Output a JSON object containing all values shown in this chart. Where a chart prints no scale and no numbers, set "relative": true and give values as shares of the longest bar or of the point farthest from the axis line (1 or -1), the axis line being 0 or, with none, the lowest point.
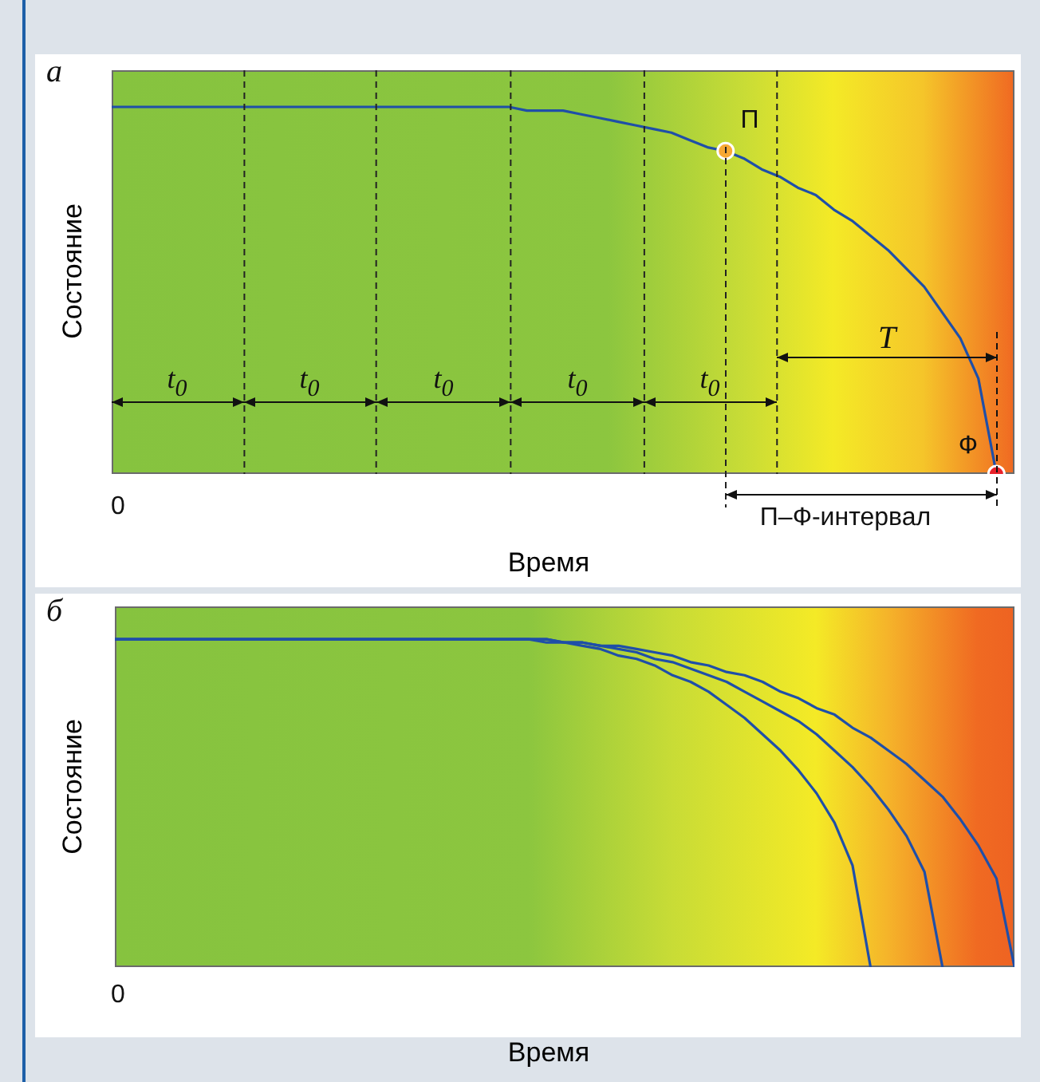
{
  "chart_data": [
    {
      "type": "line",
      "relative": true,
      "xlabel": "Время",
      "ylabel": "Состояние",
      "legend": false,
      "grid": "x",
      "categories": [
        null,
        null,
        null,
        null,
        null,
        null,
        null,
        null,
        null,
        null,
        null,
        null,
        null,
        null,
        null,
        null,
        null,
        null,
        null,
        null,
        null,
        null,
        null,
        null,
        null,
        null,
        null,
        null,
        null,
        null,
        null,
        null,
        null,
        null,
        null,
        null,
        null,
        null,
        null,
        null,
        null,
        null,
        null,
        null,
        null,
        null,
        null,
        null,
        null,
        null,
        null
      ],
      "series": [
        {
          "color": "#1f4fa8",
          "values": [
            1,
            1,
            1,
            1,
            1,
            1,
            1,
            1,
            1,
            1,
            1,
            1,
            1,
            1,
            1,
            1,
            1,
            1,
            1,
            1,
            1,
            1.0,
            1.0,
            0.99,
            0.99,
            0.99,
            0.98,
            0.97,
            0.96,
            0.95,
            0.94,
            0.93,
            0.91,
            0.89,
            0.88,
            0.86,
            0.83,
            0.81,
            0.78,
            0.76,
            0.72,
            0.69,
            0.65,
            0.61,
            0.56,
            0.51,
            0.44,
            0.37,
            0.26,
            0,
            null
          ],
          "colors": [
            null,
            null,
            null,
            null,
            null,
            null,
            null,
            null,
            null,
            null,
            null,
            null,
            null,
            null,
            null,
            null,
            null,
            null,
            null,
            null,
            null,
            null,
            null,
            null,
            null,
            null,
            null,
            null,
            null,
            null,
            null,
            null,
            null,
            null,
            "#f7a833",
            null,
            null,
            null,
            null,
            null,
            null,
            null,
            null,
            null,
            null,
            null,
            null,
            null,
            null,
            "#e8212a",
            null
          ]
        }
      ],
      "annotations": [
        "а",
        "0",
        "t$_{0}$",
        "t$_{0}$",
        "t$_{0}$",
        "t$_{0}$",
        "t$_{0}$",
        "T",
        "П",
        "Ф",
        "П–Ф-интервал"
      ]
    },
    {
      "type": "line",
      "relative": true,
      "xlabel": "Время",
      "ylabel": "Состояние",
      "legend": false,
      "categories": [
        null,
        null,
        null,
        null,
        null,
        null,
        null,
        null,
        null,
        null,
        null,
        null,
        null,
        null,
        null,
        null,
        null,
        null,
        null,
        null,
        null,
        null,
        null,
        null,
        null,
        null,
        null,
        null,
        null,
        null,
        null,
        null,
        null,
        null,
        null,
        null,
        null,
        null,
        null,
        null,
        null,
        null,
        null,
        null,
        null,
        null,
        null,
        null,
        null,
        null,
        null
      ],
      "series": [
        {
          "color": "#1f4fa8",
          "values": [
            1,
            1,
            1,
            1,
            1,
            1,
            1,
            1,
            1,
            1,
            1,
            1,
            1,
            1,
            1,
            1,
            1,
            1,
            1,
            1,
            1,
            1,
            1,
            1.0,
            0.99,
            0.99,
            0.98,
            0.97,
            0.95,
            0.94,
            0.92,
            0.89,
            0.87,
            0.84,
            0.8,
            0.76,
            0.71,
            0.66,
            0.6,
            0.53,
            0.44,
            0.31,
            0,
            null,
            null,
            null,
            null,
            null,
            null,
            null,
            null
          ]
        },
        {
          "color": "#1f4fa8",
          "values": [
            1,
            1,
            1,
            1,
            1,
            1,
            1,
            1,
            1,
            1,
            1,
            1,
            1,
            1,
            1,
            1,
            1,
            1,
            1,
            1,
            1,
            1,
            1,
            1.0,
            1.0,
            0.99,
            0.99,
            0.98,
            0.97,
            0.96,
            0.94,
            0.93,
            0.91,
            0.89,
            0.87,
            0.84,
            0.81,
            0.78,
            0.75,
            0.71,
            0.66,
            0.61,
            0.55,
            0.48,
            0.4,
            0.29,
            0,
            null,
            null,
            null,
            null
          ]
        },
        {
          "color": "#1f4fa8",
          "values": [
            1,
            1,
            1,
            1,
            1,
            1,
            1,
            1,
            1,
            1,
            1,
            1,
            1,
            1,
            1,
            1,
            1,
            1,
            1,
            1,
            1,
            1,
            1,
            1.0,
            1.0,
            0.99,
            0.99,
            0.98,
            0.98,
            0.97,
            0.96,
            0.95,
            0.93,
            0.92,
            0.9,
            0.89,
            0.87,
            0.84,
            0.82,
            0.79,
            0.77,
            0.73,
            0.7,
            0.66,
            0.62,
            0.57,
            0.52,
            0.45,
            0.37,
            0.27,
            0
          ]
        }
      ],
      "annotations": [
        "б",
        "0"
      ]
    }
  ]
}
